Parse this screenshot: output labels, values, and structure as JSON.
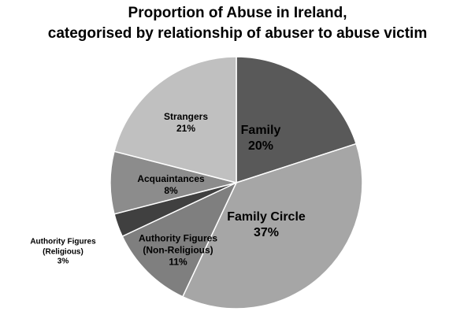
{
  "chart_data": {
    "type": "pie",
    "title": [
      "Proportion of Abuse in Ireland,",
      "categorised by relationship of abuser to abuse victim"
    ],
    "categories": [
      "Family",
      "Family Circle",
      "Authority Figures (Non-Religious)",
      "Authority Figures (Religious)",
      "Acquaintances",
      "Strangers"
    ],
    "values": [
      20,
      37,
      11,
      3,
      8,
      21
    ],
    "value_labels": [
      "20%",
      "37%",
      "11%",
      "3%",
      "8%",
      "21%"
    ],
    "colors": [
      "#595959",
      "#a6a6a6",
      "#7f7f7f",
      "#404040",
      "#8c8c8c",
      "#c0c0c0"
    ]
  }
}
